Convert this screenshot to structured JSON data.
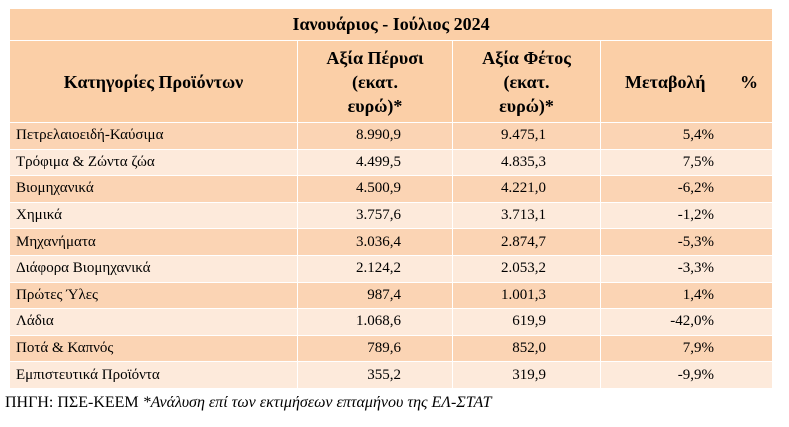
{
  "header": {
    "title": "Ιανουάριος - Ιούλιος  2024"
  },
  "table": {
    "columns": [
      [
        "Κατηγορίες Προϊόντων"
      ],
      [
        "Αξία Πέρυσι",
        "(εκατ.",
        "ευρώ)*"
      ],
      [
        "Αξία Φέτος",
        "(εκατ.",
        "ευρώ)*"
      ],
      [
        "Μεταβολή %"
      ]
    ],
    "rows": [
      [
        "Πετρελαιοειδή-Καύσιμα",
        "8.990,9",
        "9.475,1",
        "5,4%"
      ],
      [
        "Τρόφιμα & Ζώντα ζώα",
        "4.499,5",
        "4.835,3",
        "7,5%"
      ],
      [
        "Βιομηχανικά",
        "4.500,9",
        "4.221,0",
        "-6,2%"
      ],
      [
        "Χημικά",
        "3.757,6",
        "3.713,1",
        "-1,2%"
      ],
      [
        "Μηχανήματα",
        "3.036,4",
        "2.874,7",
        "-5,3%"
      ],
      [
        "Διάφορα Βιομηχανικά",
        "2.124,2",
        "2.053,2",
        "-3,3%"
      ],
      [
        "Πρώτες Ύλες",
        "987,4",
        "1.001,3",
        "1,4%"
      ],
      [
        "Λάδια",
        "1.068,6",
        "619,9",
        "-42,0%"
      ],
      [
        "Ποτά & Καπνός",
        "789,6",
        "852,0",
        "7,9%"
      ],
      [
        "Εμπιστευτικά Προϊόντα",
        "355,2",
        "319,9",
        "-9,9%"
      ]
    ]
  },
  "footer": {
    "source": "ΠΗΓΗ: ΠΣΕ-ΚΕΕΜ ",
    "note": "*Ανάλυση επί των εκτιμήσεων επταμήνου της ΕΛ-ΣΤΑΤ"
  }
}
